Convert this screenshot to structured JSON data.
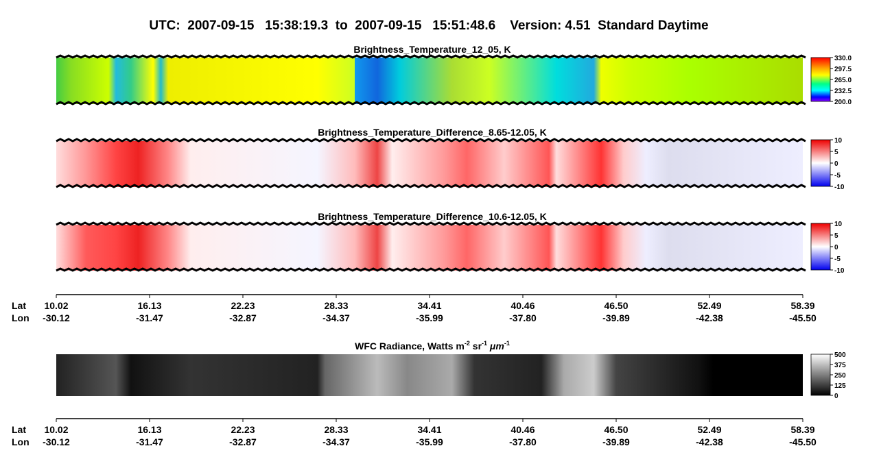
{
  "header": {
    "title": "UTC:  2007-09-15   15:38:19.3  to  2007-09-15   15:51:48.6    Version: 4.51  Standard Daytime"
  },
  "panels": [
    {
      "title": "Brightness_Temperature_12_05, K",
      "colorbar": [
        "330.0",
        "297.5",
        "265.0",
        "232.5",
        "200.0"
      ]
    },
    {
      "title": "Brightness_Temperature_Difference_8.65-12.05, K",
      "colorbar": [
        "10",
        "5",
        "0",
        "-5",
        "-10"
      ]
    },
    {
      "title": "Brightness_Temperature_Difference_10.6-12.05, K",
      "colorbar": [
        "10",
        "5",
        "0",
        "-5",
        "-10"
      ]
    }
  ],
  "wfc": {
    "title_parts": [
      "WFC Radiance, Watts m",
      "-2",
      " sr",
      "-1",
      " μm",
      "-1"
    ],
    "colorbar": [
      "500",
      "375",
      "250",
      "125",
      "0"
    ]
  },
  "axis": {
    "lat_label": "Lat",
    "lon_label": "Lon",
    "lat": [
      "10.02",
      "16.13",
      "22.23",
      "28.33",
      "34.41",
      "40.46",
      "46.50",
      "52.49",
      "58.39"
    ],
    "lon": [
      "-30.12",
      "-31.47",
      "-32.87",
      "-34.37",
      "-35.99",
      "-37.80",
      "-39.89",
      "-42.38",
      "-45.50"
    ]
  }
}
